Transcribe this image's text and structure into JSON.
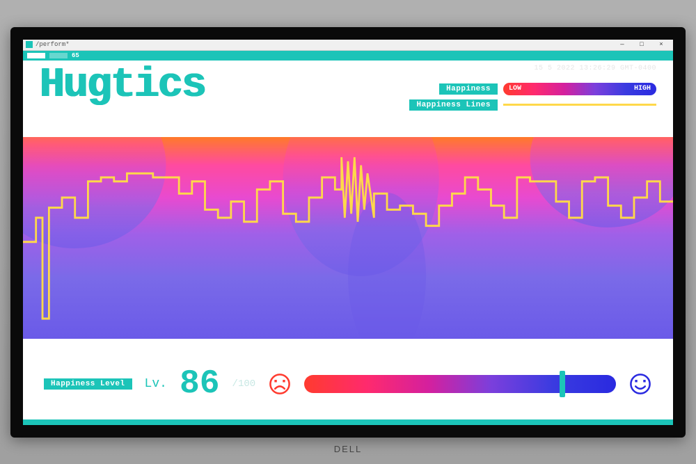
{
  "window": {
    "title": "/perform*",
    "minimize": "—",
    "maximize": "□",
    "close": "×"
  },
  "fpsbar": {
    "value": "65"
  },
  "header": {
    "logo": "Hugtics",
    "timestamp": "15 5 2022 13:26:29 GMT-0400",
    "legend": {
      "happiness_label": "Happiness",
      "lines_label": "Happiness Lines",
      "low": "LOW",
      "high": "HIGH",
      "gradient_stops": [
        "#ff3b2f",
        "#ff2a6d",
        "#d4209e",
        "#7b3fdc",
        "#3a3be0",
        "#2a2ae0"
      ],
      "line_color": "#ffd84a"
    }
  },
  "chart": {
    "type": "line-over-heatmap",
    "background_gradient_top": [
      "#ff7a2a",
      "#ff4aa0",
      "#ff5aa8",
      "#ff4aa0",
      "#ff7a2a"
    ],
    "background_gradient_bottom": [
      "#7a6ae8",
      "#6a5ae8",
      "#7a6ae8"
    ],
    "line_color": "#ffd84a",
    "line_width": 3,
    "xlim": [
      0,
      100
    ],
    "ylim": [
      0,
      100
    ],
    "series": [
      [
        0,
        48
      ],
      [
        2,
        48
      ],
      [
        2,
        60
      ],
      [
        3,
        60
      ],
      [
        3,
        10
      ],
      [
        4,
        10
      ],
      [
        4,
        65
      ],
      [
        6,
        65
      ],
      [
        6,
        70
      ],
      [
        8,
        70
      ],
      [
        8,
        60
      ],
      [
        10,
        60
      ],
      [
        10,
        78
      ],
      [
        12,
        78
      ],
      [
        12,
        80
      ],
      [
        14,
        80
      ],
      [
        14,
        78
      ],
      [
        16,
        78
      ],
      [
        16,
        82
      ],
      [
        20,
        82
      ],
      [
        20,
        80
      ],
      [
        24,
        80
      ],
      [
        24,
        72
      ],
      [
        26,
        72
      ],
      [
        26,
        78
      ],
      [
        28,
        78
      ],
      [
        28,
        64
      ],
      [
        30,
        64
      ],
      [
        30,
        60
      ],
      [
        32,
        60
      ],
      [
        32,
        68
      ],
      [
        34,
        68
      ],
      [
        34,
        58
      ],
      [
        36,
        58
      ],
      [
        36,
        74
      ],
      [
        38,
        74
      ],
      [
        38,
        78
      ],
      [
        40,
        78
      ],
      [
        40,
        62
      ],
      [
        42,
        62
      ],
      [
        42,
        58
      ],
      [
        44,
        58
      ],
      [
        44,
        70
      ],
      [
        46,
        70
      ],
      [
        46,
        80
      ],
      [
        48,
        80
      ],
      [
        48,
        74
      ],
      [
        49,
        74
      ],
      [
        49,
        90
      ],
      [
        49.5,
        60
      ],
      [
        50,
        88
      ],
      [
        50.5,
        62
      ],
      [
        51,
        90
      ],
      [
        51.5,
        58
      ],
      [
        52,
        86
      ],
      [
        52.5,
        64
      ],
      [
        53,
        82
      ],
      [
        54,
        60
      ],
      [
        54,
        72
      ],
      [
        56,
        72
      ],
      [
        56,
        64
      ],
      [
        58,
        64
      ],
      [
        58,
        66
      ],
      [
        60,
        66
      ],
      [
        60,
        62
      ],
      [
        62,
        62
      ],
      [
        62,
        56
      ],
      [
        64,
        56
      ],
      [
        64,
        66
      ],
      [
        66,
        66
      ],
      [
        66,
        72
      ],
      [
        68,
        72
      ],
      [
        68,
        80
      ],
      [
        70,
        80
      ],
      [
        70,
        74
      ],
      [
        72,
        74
      ],
      [
        72,
        66
      ],
      [
        74,
        66
      ],
      [
        74,
        60
      ],
      [
        76,
        60
      ],
      [
        76,
        80
      ],
      [
        78,
        80
      ],
      [
        78,
        78
      ],
      [
        82,
        78
      ],
      [
        82,
        68
      ],
      [
        84,
        68
      ],
      [
        84,
        60
      ],
      [
        86,
        60
      ],
      [
        86,
        78
      ],
      [
        88,
        78
      ],
      [
        88,
        80
      ],
      [
        90,
        80
      ],
      [
        90,
        66
      ],
      [
        92,
        66
      ],
      [
        92,
        60
      ],
      [
        94,
        60
      ],
      [
        94,
        70
      ],
      [
        96,
        70
      ],
      [
        96,
        78
      ],
      [
        98,
        78
      ],
      [
        98,
        68
      ],
      [
        100,
        68
      ]
    ]
  },
  "footer": {
    "happiness_level_label": "Happiness Level",
    "lv_prefix": "Lv.",
    "lv_value": "86",
    "lv_max": "/100",
    "meter_gradient": [
      "#ff3b2f",
      "#ff2a6d",
      "#d4209e",
      "#7b3fdc",
      "#3a3be0",
      "#2a2ae0"
    ],
    "marker_percent": 82,
    "marker_color": "#1cc4b8",
    "sad_color": "#ff3b2f",
    "happy_color": "#2a2ae0"
  },
  "colors": {
    "teal": "#1cc4b8",
    "white": "#ffffff"
  },
  "laptop_brand": "DELL"
}
